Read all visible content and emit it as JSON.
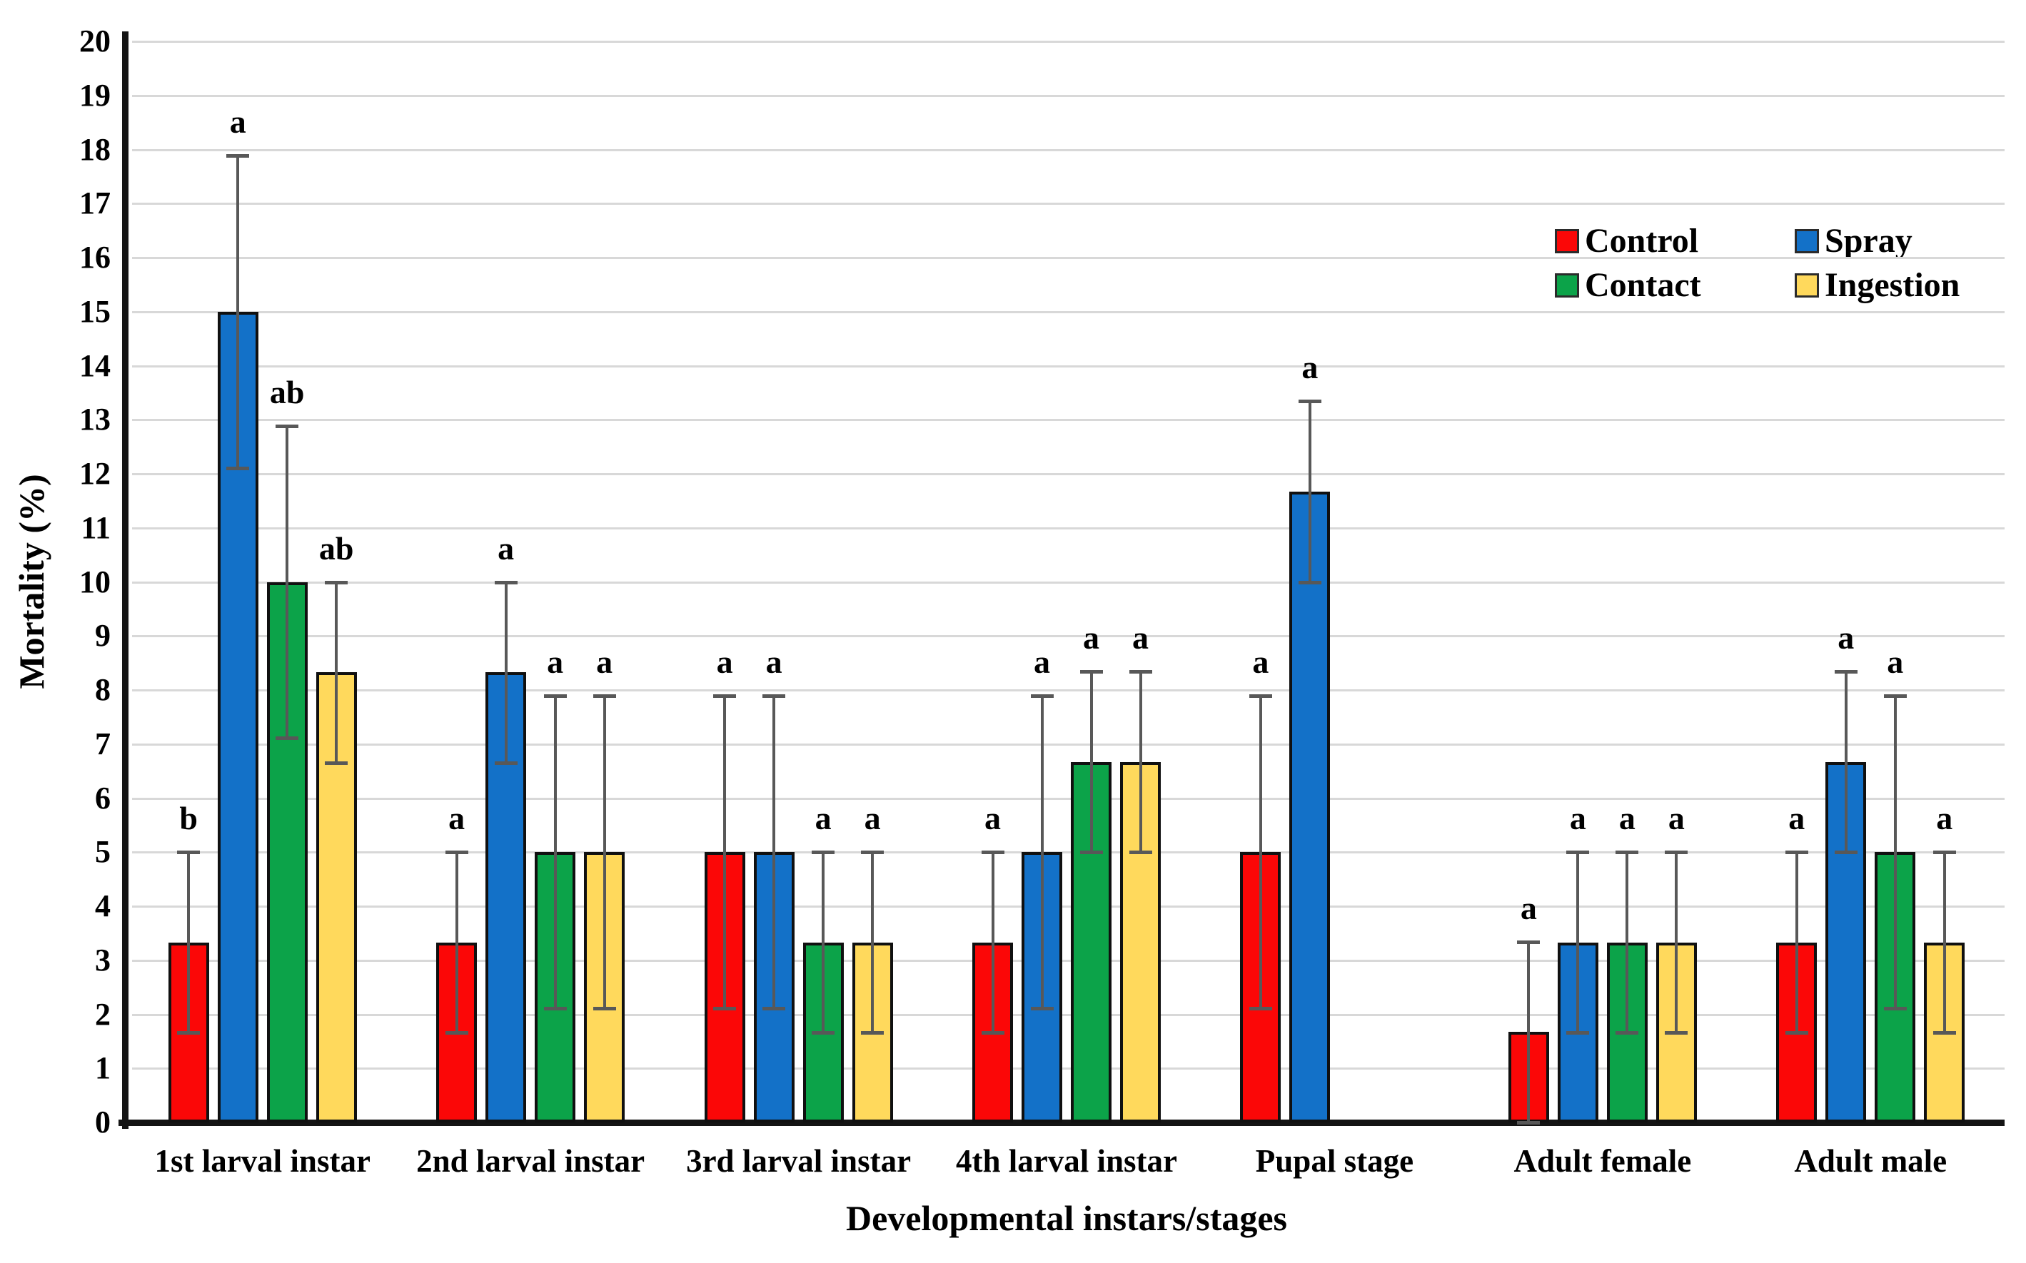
{
  "chart_data": {
    "type": "bar",
    "title": "",
    "xlabel": "Developmental instars/stages",
    "ylabel": "Mortality (%)",
    "ylim": [
      0,
      20
    ],
    "ytick_step": 1,
    "yticks": [
      0,
      1,
      2,
      3,
      4,
      5,
      6,
      7,
      8,
      9,
      10,
      11,
      12,
      13,
      14,
      15,
      16,
      17,
      18,
      19,
      20
    ],
    "grid": true,
    "legend_position": "top-right-inside",
    "categories": [
      "1st larval instar",
      "2nd larval instar",
      "3rd larval instar",
      "4th larval instar",
      "Pupal stage",
      "Adult female",
      "Adult male"
    ],
    "series": [
      {
        "name": "Control",
        "color": "#fb0707",
        "values": [
          3.33,
          3.33,
          5.0,
          3.33,
          5.0,
          1.67,
          3.33
        ],
        "errors": [
          1.67,
          1.67,
          2.89,
          1.67,
          2.89,
          1.67,
          1.67
        ],
        "letters": [
          "b",
          "a",
          "a",
          "a",
          "a",
          "a",
          "a"
        ]
      },
      {
        "name": "Spray",
        "color": "#1371c8",
        "values": [
          15.0,
          8.33,
          5.0,
          5.0,
          11.67,
          3.33,
          6.67
        ],
        "errors": [
          2.89,
          1.67,
          2.89,
          2.89,
          1.67,
          1.67,
          1.67
        ],
        "letters": [
          "a",
          "a",
          "a",
          "a",
          "a",
          "a",
          "a"
        ]
      },
      {
        "name": "Contact",
        "color": "#0ca349",
        "values": [
          10.0,
          5.0,
          3.33,
          6.67,
          null,
          3.33,
          5.0
        ],
        "errors": [
          2.89,
          2.89,
          1.67,
          1.67,
          null,
          1.67,
          2.89
        ],
        "letters": [
          "ab",
          "a",
          "a",
          "a",
          null,
          "a",
          "a"
        ]
      },
      {
        "name": "Ingestion",
        "color": "#ffd95c",
        "values": [
          8.33,
          5.0,
          3.33,
          6.67,
          null,
          3.33,
          3.33
        ],
        "errors": [
          1.67,
          2.89,
          1.67,
          1.67,
          null,
          1.67,
          1.67
        ],
        "letters": [
          "ab",
          "a",
          "a",
          "a",
          null,
          "a",
          "a"
        ]
      }
    ],
    "style": {
      "grid_color": "#d8d8d8",
      "axis_color": "#141414",
      "error_bar_color": "#585858",
      "text_color": "#000000"
    }
  }
}
